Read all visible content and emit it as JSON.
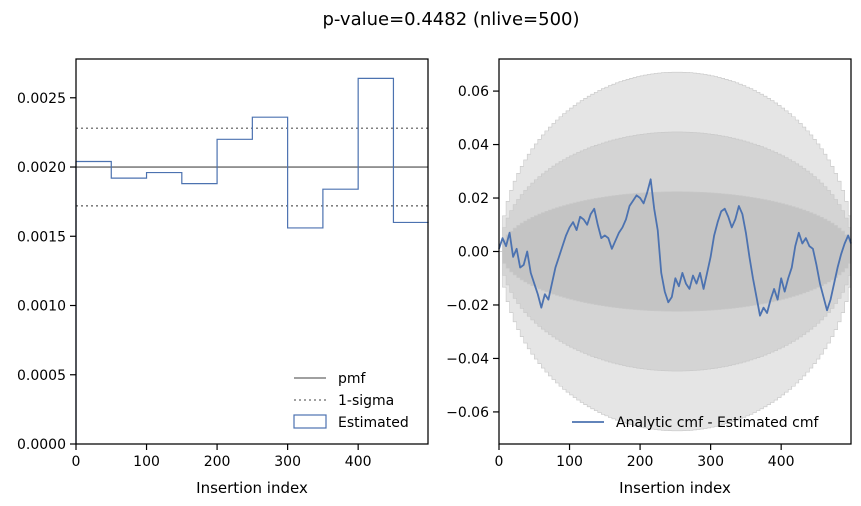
{
  "figure": {
    "title": "p-value=0.4482 (nlive=500)"
  },
  "colors": {
    "pmf": "#808080",
    "estimated": "#4c72b0",
    "band_outer": "#e5e5e5",
    "band_mid": "#d4d4d4",
    "band_inner": "#c4c4c4",
    "band_edge": "#c8c8c8"
  },
  "chart_data": [
    {
      "type": "histogram-step",
      "title": "",
      "xlabel": "Insertion index",
      "ylabel": "",
      "xlim": [
        0,
        499
      ],
      "ylim": [
        0,
        0.00278
      ],
      "xticks": [
        0,
        100,
        200,
        300,
        400
      ],
      "yticks": [
        0,
        0.0005,
        0.001,
        0.0015,
        0.002,
        0.0025
      ],
      "ytick_labels": [
        "0.0000",
        "0.0005",
        "0.0010",
        "0.0015",
        "0.0020",
        "0.0025"
      ],
      "bin_edges": [
        0,
        50,
        100,
        150,
        200,
        250,
        300,
        350,
        400,
        450,
        500
      ],
      "estimated": [
        0.00204,
        0.00192,
        0.00196,
        0.00188,
        0.0022,
        0.00236,
        0.00156,
        0.00184,
        0.00264,
        0.0016
      ],
      "pmf": 0.002,
      "sigma_upper": 0.00228,
      "sigma_lower": 0.00172,
      "legend": {
        "position": "lower-right",
        "entries": [
          "pmf",
          "1-sigma",
          "Estimated"
        ]
      }
    },
    {
      "type": "line",
      "xlabel": "Insertion index",
      "ylabel": "",
      "xlim": [
        0,
        499
      ],
      "ylim": [
        -0.072,
        0.072
      ],
      "xticks": [
        0,
        100,
        200,
        300,
        400
      ],
      "yticks": [
        -0.06,
        -0.04,
        -0.02,
        0.0,
        0.02,
        0.04,
        0.06
      ],
      "ytick_labels": [
        "−0.06",
        "−0.04",
        "−0.02",
        "0.00",
        "0.02",
        "0.04",
        "0.06"
      ],
      "sigma_bands": [
        3,
        2,
        1
      ],
      "band_n": 500,
      "series": [
        {
          "name": "Analytic cmf - Estimated cmf",
          "x": [
            0,
            5,
            10,
            15,
            20,
            25,
            30,
            35,
            40,
            45,
            50,
            55,
            60,
            65,
            70,
            75,
            80,
            85,
            90,
            95,
            100,
            105,
            110,
            115,
            120,
            125,
            130,
            135,
            140,
            145,
            150,
            155,
            160,
            165,
            170,
            175,
            180,
            185,
            190,
            195,
            200,
            205,
            210,
            215,
            220,
            225,
            230,
            235,
            240,
            245,
            250,
            255,
            260,
            265,
            270,
            275,
            280,
            285,
            290,
            295,
            300,
            305,
            310,
            315,
            320,
            325,
            330,
            335,
            340,
            345,
            350,
            355,
            360,
            365,
            370,
            375,
            380,
            385,
            390,
            395,
            400,
            405,
            410,
            415,
            420,
            425,
            430,
            435,
            440,
            445,
            450,
            455,
            460,
            465,
            470,
            475,
            480,
            485,
            490,
            495,
            499
          ],
          "y": [
            0.001,
            0.005,
            0.002,
            0.007,
            -0.002,
            0.001,
            -0.006,
            -0.005,
            0.0,
            -0.008,
            -0.012,
            -0.016,
            -0.021,
            -0.016,
            -0.018,
            -0.012,
            -0.006,
            -0.002,
            0.002,
            0.006,
            0.009,
            0.011,
            0.008,
            0.013,
            0.012,
            0.01,
            0.014,
            0.016,
            0.01,
            0.005,
            0.006,
            0.005,
            0.001,
            0.004,
            0.007,
            0.009,
            0.012,
            0.017,
            0.019,
            0.021,
            0.02,
            0.018,
            0.022,
            0.027,
            0.016,
            0.008,
            -0.008,
            -0.015,
            -0.019,
            -0.017,
            -0.01,
            -0.013,
            -0.008,
            -0.012,
            -0.014,
            -0.009,
            -0.012,
            -0.008,
            -0.014,
            -0.008,
            -0.002,
            0.006,
            0.011,
            0.015,
            0.016,
            0.013,
            0.009,
            0.012,
            0.017,
            0.014,
            0.007,
            -0.002,
            -0.01,
            -0.017,
            -0.024,
            -0.021,
            -0.023,
            -0.018,
            -0.014,
            -0.018,
            -0.01,
            -0.015,
            -0.01,
            -0.006,
            0.002,
            0.007,
            0.003,
            0.005,
            0.002,
            0.001,
            -0.005,
            -0.012,
            -0.017,
            -0.022,
            -0.018,
            -0.012,
            -0.006,
            -0.001,
            0.003,
            0.006,
            0.003
          ]
        }
      ],
      "legend": {
        "position": "lower-right",
        "entries": [
          "Analytic cmf - Estimated cmf"
        ]
      }
    }
  ]
}
